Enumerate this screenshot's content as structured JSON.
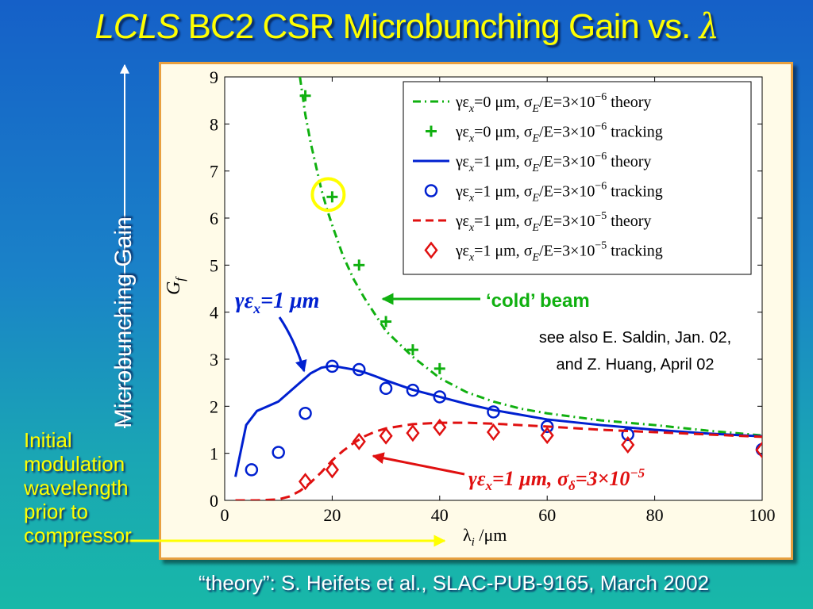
{
  "title": {
    "italic_part": "LCLS",
    "main_part": " BC2 CSR Microbunching Gain vs. ",
    "symbol": "λ"
  },
  "side_label": "Microbunching Gain",
  "bottom_left_note": [
    "Initial",
    "modulation",
    "wavelength",
    "prior to",
    "compressor"
  ],
  "footer_note": "“theory”:  S. Heifets et al., SLAC-PUB-9165, March 2002",
  "annotations": {
    "cold_beam": "‘cold’ beam",
    "see_also_line1": "see also E. Saldin, Jan. 02,",
    "see_also_line2": "and Z. Huang, April 02",
    "emittance_label": "γε",
    "emittance_sub": "x",
    "emittance_value": "=1 μm",
    "sigma_label_value": "=1 μm, ",
    "sigma_symbol": "σ",
    "sigma_sub": "δ",
    "sigma_value": "=3×10",
    "sigma_exp": "−5"
  },
  "colors": {
    "green": "#10b010",
    "blue": "#0020d0",
    "red": "#e01010",
    "title": "#ffff00",
    "highlight": "#ffff00"
  },
  "chart_data": {
    "type": "line",
    "xlabel": "λ",
    "xlabel_sub": "i",
    "xlabel_unit": " /μm",
    "ylabel": "G",
    "ylabel_sub": "f",
    "xlim": [
      0,
      100
    ],
    "ylim": [
      0,
      9
    ],
    "x_ticks": [
      0,
      20,
      40,
      60,
      80,
      100
    ],
    "y_ticks": [
      0,
      1,
      2,
      3,
      4,
      5,
      6,
      7,
      8,
      9
    ],
    "legend_position": "top-right",
    "series": [
      {
        "name": "γεx=0 μm, σE/E=3×10−6 theory",
        "legend": {
          "ge": "γε",
          "sub": "x",
          "eq": "=0 μm, ",
          "sig": "σ",
          "sigsub": "E",
          "rest": "/E=3×10",
          "exp": "−6",
          "tail": " theory"
        },
        "style": "dashdot",
        "color": "#10b010",
        "x": [
          14,
          15,
          16,
          17,
          18,
          19,
          20,
          22,
          24,
          26,
          28,
          30,
          35,
          40,
          45,
          50,
          55,
          60,
          70,
          80,
          90,
          100
        ],
        "y": [
          9.0,
          8.2,
          7.6,
          7.1,
          6.6,
          6.2,
          5.85,
          5.2,
          4.7,
          4.3,
          3.95,
          3.6,
          3.05,
          2.6,
          2.3,
          2.1,
          1.95,
          1.85,
          1.7,
          1.6,
          1.48,
          1.38
        ]
      },
      {
        "name": "γεx=0 μm, σE/E=3×10−6 tracking",
        "legend": {
          "ge": "γε",
          "sub": "x",
          "eq": "=0 μm, ",
          "sig": "σ",
          "sigsub": "E",
          "rest": "/E=3×10",
          "exp": "−6",
          "tail": " tracking"
        },
        "style": "plus",
        "color": "#10b010",
        "x": [
          15,
          20,
          25,
          30,
          35,
          40
        ],
        "y": [
          8.6,
          6.45,
          5.0,
          3.8,
          3.2,
          2.8
        ]
      },
      {
        "name": "γεx=1 μm, σE/E=3×10−6 theory",
        "legend": {
          "ge": "γε",
          "sub": "x",
          "eq": "=1 μm, ",
          "sig": "σ",
          "sigsub": "E",
          "rest": "/E=3×10",
          "exp": "−6",
          "tail": " theory"
        },
        "style": "solid",
        "color": "#0020d0",
        "x": [
          2,
          4,
          6,
          8,
          10,
          12,
          14,
          16,
          18,
          20,
          22,
          24,
          26,
          28,
          30,
          35,
          40,
          45,
          50,
          60,
          70,
          80,
          90,
          100
        ],
        "y": [
          0.5,
          1.6,
          1.9,
          2.0,
          2.1,
          2.3,
          2.5,
          2.7,
          2.82,
          2.86,
          2.82,
          2.78,
          2.72,
          2.64,
          2.55,
          2.35,
          2.2,
          2.05,
          1.92,
          1.72,
          1.6,
          1.5,
          1.42,
          1.36
        ]
      },
      {
        "name": "γεx=1 μm, σE/E=3×10−6 tracking",
        "legend": {
          "ge": "γε",
          "sub": "x",
          "eq": "=1 μm, ",
          "sig": "σ",
          "sigsub": "E",
          "rest": "/E=3×10",
          "exp": "−6",
          "tail": " tracking"
        },
        "style": "circle",
        "color": "#0020d0",
        "x": [
          5,
          10,
          15,
          20,
          25,
          30,
          35,
          40,
          50,
          60,
          75,
          100
        ],
        "y": [
          0.65,
          1.02,
          1.85,
          2.85,
          2.78,
          2.38,
          2.34,
          2.2,
          1.88,
          1.57,
          1.4,
          1.08
        ]
      },
      {
        "name": "γεx=1 μm, σE/E=3×10−5 theory",
        "legend": {
          "ge": "γε",
          "sub": "x",
          "eq": "=1 μm, ",
          "sig": "σ",
          "sigsub": "E",
          "rest": "/E=3×10",
          "exp": "−5",
          "tail": " theory"
        },
        "style": "dashed",
        "color": "#e01010",
        "x": [
          2,
          6,
          10,
          12,
          14,
          16,
          18,
          20,
          22,
          24,
          26,
          28,
          30,
          35,
          40,
          45,
          50,
          60,
          70,
          80,
          90,
          100
        ],
        "y": [
          0.0,
          0.0,
          0.02,
          0.08,
          0.2,
          0.38,
          0.6,
          0.85,
          1.05,
          1.22,
          1.36,
          1.46,
          1.53,
          1.62,
          1.65,
          1.65,
          1.63,
          1.57,
          1.5,
          1.45,
          1.4,
          1.35
        ]
      },
      {
        "name": "γεx=1 μm, σE/E=3×10−5 tracking",
        "legend": {
          "ge": "γε",
          "sub": "x",
          "eq": "=1 μm, ",
          "sig": "σ",
          "sigsub": "E",
          "rest": "/E=3×10",
          "exp": "−5",
          "tail": " tracking"
        },
        "style": "diamond",
        "color": "#e01010",
        "x": [
          15,
          20,
          25,
          30,
          35,
          40,
          50,
          60,
          75,
          100
        ],
        "y": [
          0.4,
          0.65,
          1.25,
          1.37,
          1.43,
          1.55,
          1.45,
          1.38,
          1.18,
          1.07
        ]
      }
    ],
    "highlighted_point": {
      "x": 20,
      "y": 6.5
    }
  }
}
